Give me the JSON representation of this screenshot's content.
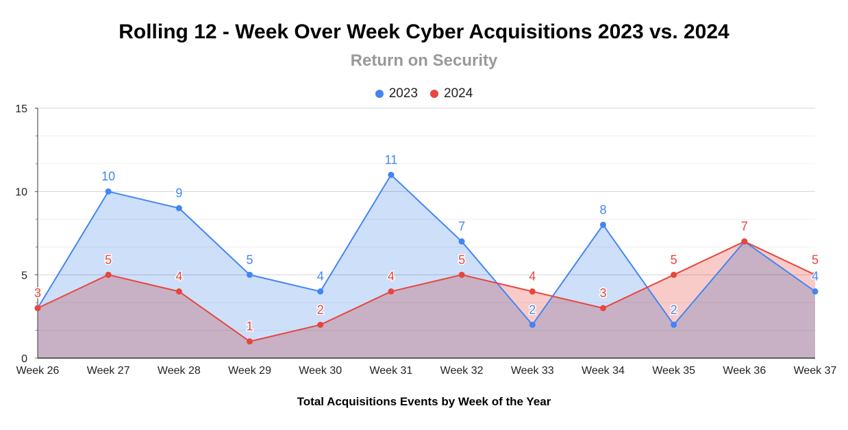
{
  "chart_data": {
    "type": "area",
    "title": "Rolling 12 - Week Over Week Cyber Acquisitions 2023 vs. 2024",
    "subtitle": "Return on Security",
    "xlabel": "Total Acquisitions Events by Week of the Year",
    "ylabel": "",
    "ylim": [
      0,
      15
    ],
    "yticks": [
      "0",
      "5",
      "10",
      "15"
    ],
    "grid": true,
    "legend_position": "top",
    "categories": [
      "Week 26",
      "Week 27",
      "Week 28",
      "Week 29",
      "Week 30",
      "Week 31",
      "Week 32",
      "Week 33",
      "Week 34",
      "Week 35",
      "Week 36",
      "Week 37"
    ],
    "series": [
      {
        "name": "2023",
        "color": "#4285f4",
        "fill": "#c5d9f9",
        "values": [
          3,
          10,
          9,
          5,
          4,
          11,
          7,
          2,
          8,
          2,
          7,
          4
        ],
        "labels": [
          "",
          "10",
          "9",
          "5",
          "4",
          "11",
          "7",
          "2",
          "8",
          "2",
          "",
          "4"
        ]
      },
      {
        "name": "2024",
        "color": "#e8453c",
        "fill": "#f7c2be",
        "values": [
          3,
          5,
          4,
          1,
          2,
          4,
          5,
          4,
          3,
          5,
          7,
          5
        ],
        "labels": [
          "3",
          "5",
          "4",
          "1",
          "2",
          "4",
          "5",
          "4",
          "3",
          "5",
          "7",
          "5"
        ]
      }
    ]
  }
}
